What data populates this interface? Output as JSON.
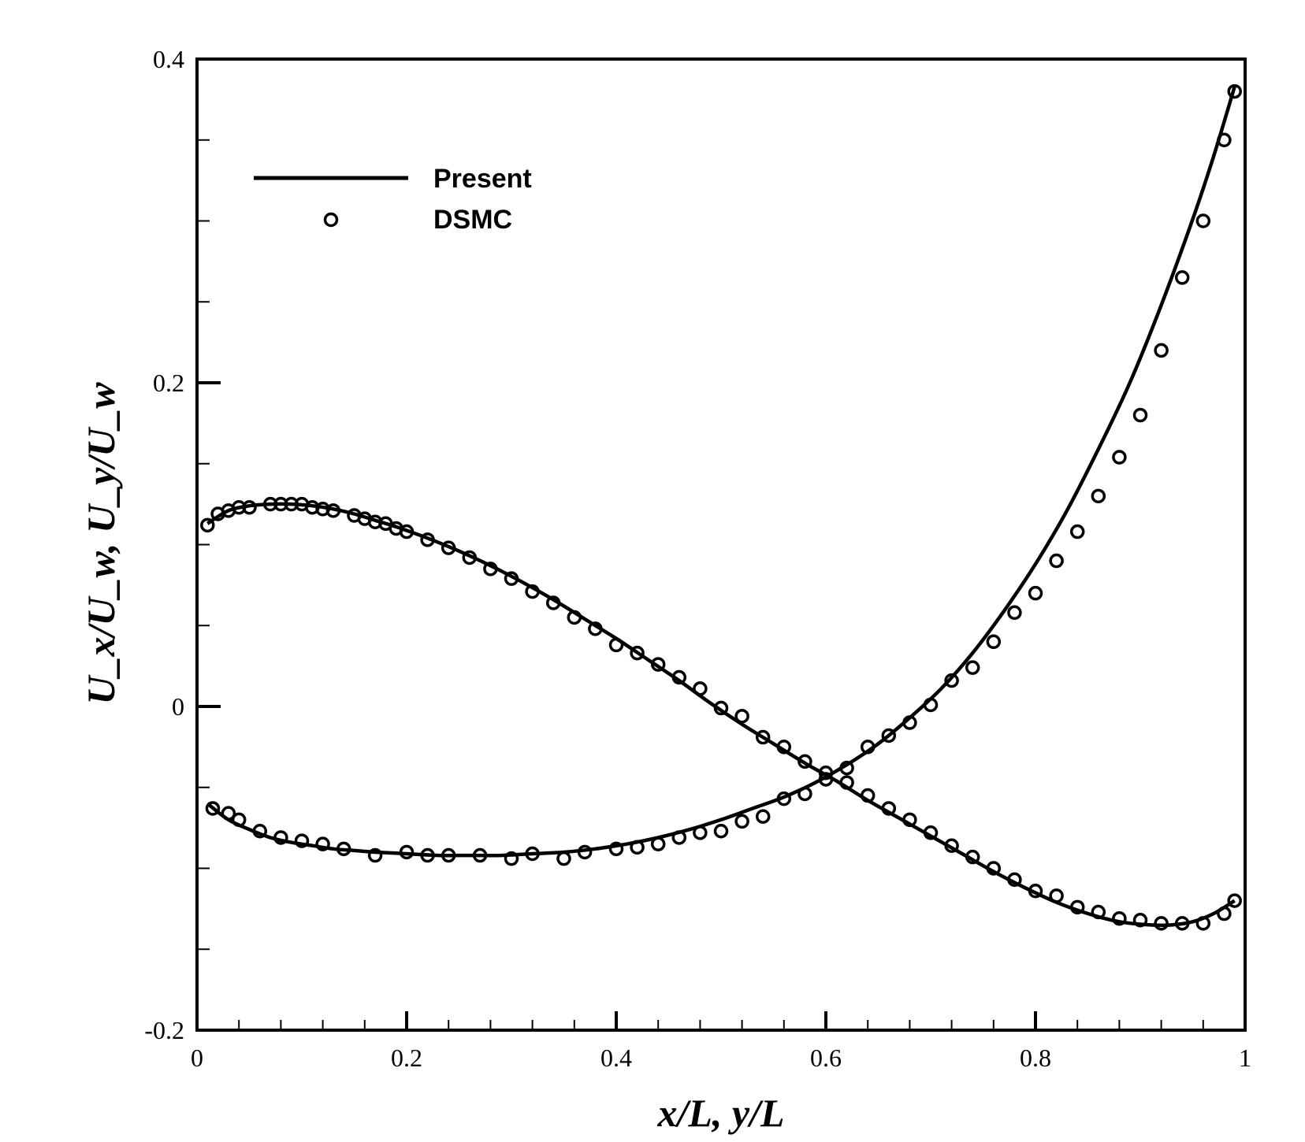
{
  "chart_data": {
    "type": "line",
    "xlim": [
      0,
      1
    ],
    "ylim": [
      -0.2,
      0.4
    ],
    "x_ticks": [
      0,
      0.2,
      0.4,
      0.6,
      0.8,
      1
    ],
    "x_tick_labels": [
      "0",
      "0.2",
      "0.4",
      "0.6",
      "0.8",
      "1"
    ],
    "y_ticks": [
      -0.2,
      0,
      0.2,
      0.4
    ],
    "y_tick_labels": [
      "-0.2",
      "0",
      "0.2",
      "0.4"
    ],
    "xlabel": "x/L, y/L",
    "ylabel": "U_x/U_w, U_y/U_w",
    "legend_placement": "top-left",
    "grid": false,
    "legend": [
      {
        "label": "Present",
        "marker": "line"
      },
      {
        "label": "DSMC",
        "marker": "circle"
      }
    ],
    "series": [
      {
        "name": "Present",
        "style": "solid-line",
        "curve": "profile-1",
        "x": [
          0.01,
          0.03,
          0.05,
          0.07,
          0.09,
          0.11,
          0.13,
          0.15,
          0.17,
          0.19,
          0.22,
          0.25,
          0.28,
          0.31,
          0.34,
          0.37,
          0.4,
          0.43,
          0.46,
          0.49,
          0.52,
          0.55,
          0.58,
          0.61,
          0.64,
          0.67,
          0.7,
          0.73,
          0.76,
          0.79,
          0.82,
          0.85,
          0.88,
          0.91,
          0.93,
          0.95,
          0.97,
          0.99
        ],
        "y": [
          0.113,
          0.121,
          0.124,
          0.125,
          0.125,
          0.124,
          0.122,
          0.119,
          0.115,
          0.111,
          0.104,
          0.096,
          0.087,
          0.077,
          0.066,
          0.054,
          0.042,
          0.029,
          0.016,
          0.002,
          -0.011,
          -0.023,
          -0.035,
          -0.046,
          -0.058,
          -0.069,
          -0.08,
          -0.091,
          -0.102,
          -0.112,
          -0.121,
          -0.128,
          -0.133,
          -0.135,
          -0.135,
          -0.133,
          -0.128,
          -0.12
        ]
      },
      {
        "name": "Present",
        "style": "solid-line",
        "curve": "profile-2",
        "x": [
          0.01,
          0.03,
          0.05,
          0.07,
          0.09,
          0.11,
          0.13,
          0.15,
          0.17,
          0.2,
          0.23,
          0.26,
          0.29,
          0.32,
          0.35,
          0.38,
          0.41,
          0.44,
          0.47,
          0.5,
          0.53,
          0.56,
          0.59,
          0.62,
          0.65,
          0.68,
          0.71,
          0.74,
          0.77,
          0.8,
          0.83,
          0.86,
          0.89,
          0.92,
          0.95,
          0.97,
          0.99
        ],
        "y": [
          -0.06,
          -0.07,
          -0.076,
          -0.081,
          -0.084,
          -0.086,
          -0.088,
          -0.089,
          -0.09,
          -0.091,
          -0.092,
          -0.092,
          -0.092,
          -0.091,
          -0.09,
          -0.088,
          -0.085,
          -0.081,
          -0.076,
          -0.07,
          -0.063,
          -0.056,
          -0.047,
          -0.036,
          -0.023,
          -0.007,
          0.011,
          0.033,
          0.059,
          0.088,
          0.121,
          0.159,
          0.2,
          0.248,
          0.301,
          0.34,
          0.383
        ]
      },
      {
        "name": "DSMC",
        "style": "open-circle",
        "curve": "profile-1",
        "x": [
          0.01,
          0.02,
          0.03,
          0.04,
          0.05,
          0.07,
          0.08,
          0.09,
          0.1,
          0.11,
          0.12,
          0.13,
          0.15,
          0.16,
          0.17,
          0.18,
          0.19,
          0.2,
          0.22,
          0.24,
          0.26,
          0.28,
          0.3,
          0.32,
          0.34,
          0.36,
          0.38,
          0.4,
          0.42,
          0.44,
          0.46,
          0.48,
          0.5,
          0.52,
          0.54,
          0.56,
          0.58,
          0.6,
          0.62,
          0.64,
          0.66,
          0.68,
          0.7,
          0.72,
          0.74,
          0.76,
          0.78,
          0.8,
          0.82,
          0.84,
          0.86,
          0.88,
          0.9,
          0.92,
          0.94,
          0.96,
          0.98,
          0.99
        ],
        "y": [
          0.112,
          0.119,
          0.121,
          0.123,
          0.123,
          0.125,
          0.125,
          0.125,
          0.125,
          0.123,
          0.122,
          0.121,
          0.118,
          0.116,
          0.114,
          0.113,
          0.11,
          0.108,
          0.103,
          0.098,
          0.092,
          0.085,
          0.079,
          0.071,
          0.064,
          0.055,
          0.048,
          0.038,
          0.033,
          0.026,
          0.018,
          0.011,
          -0.001,
          -0.006,
          -0.019,
          -0.025,
          -0.034,
          -0.041,
          -0.047,
          -0.055,
          -0.063,
          -0.07,
          -0.078,
          -0.086,
          -0.093,
          -0.1,
          -0.107,
          -0.114,
          -0.117,
          -0.124,
          -0.127,
          -0.131,
          -0.132,
          -0.134,
          -0.134,
          -0.134,
          -0.128,
          -0.12
        ]
      },
      {
        "name": "DSMC",
        "style": "open-circle",
        "curve": "profile-2",
        "x": [
          0.015,
          0.03,
          0.04,
          0.06,
          0.08,
          0.1,
          0.12,
          0.14,
          0.17,
          0.2,
          0.22,
          0.24,
          0.27,
          0.3,
          0.32,
          0.35,
          0.37,
          0.4,
          0.42,
          0.44,
          0.46,
          0.48,
          0.5,
          0.52,
          0.54,
          0.56,
          0.58,
          0.6,
          0.62,
          0.64,
          0.66,
          0.68,
          0.7,
          0.72,
          0.74,
          0.76,
          0.78,
          0.8,
          0.82,
          0.84,
          0.86,
          0.88,
          0.9,
          0.92,
          0.94,
          0.96,
          0.98,
          0.99
        ],
        "y": [
          -0.063,
          -0.066,
          -0.07,
          -0.077,
          -0.081,
          -0.083,
          -0.085,
          -0.088,
          -0.092,
          -0.09,
          -0.092,
          -0.092,
          -0.092,
          -0.094,
          -0.091,
          -0.094,
          -0.09,
          -0.088,
          -0.087,
          -0.085,
          -0.081,
          -0.078,
          -0.077,
          -0.071,
          -0.068,
          -0.057,
          -0.054,
          -0.045,
          -0.038,
          -0.025,
          -0.018,
          -0.01,
          0.001,
          0.016,
          0.024,
          0.04,
          0.058,
          0.07,
          0.09,
          0.108,
          0.13,
          0.154,
          0.18,
          0.22,
          0.265,
          0.3,
          0.35,
          0.38
        ]
      }
    ]
  }
}
